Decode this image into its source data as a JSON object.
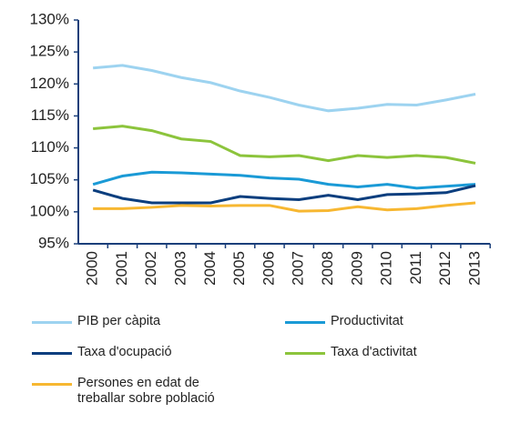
{
  "chart_data": {
    "type": "line",
    "categories": [
      "2000",
      "2001",
      "2002",
      "2003",
      "2004",
      "2005",
      "2006",
      "2007",
      "2008",
      "2009",
      "2010",
      "2011",
      "2012",
      "2013"
    ],
    "series": [
      {
        "name": "PIB per càpita",
        "color": "#9dd3f0",
        "values": [
          122.5,
          122.9,
          122.1,
          121.0,
          120.2,
          118.9,
          117.9,
          116.7,
          115.8,
          116.2,
          116.8,
          116.7,
          117.5,
          118.4
        ]
      },
      {
        "name": "Productivitat",
        "color": "#1a9ad6",
        "values": [
          104.3,
          105.6,
          106.2,
          106.1,
          105.9,
          105.7,
          105.3,
          105.1,
          104.3,
          103.9,
          104.3,
          103.7,
          104.0,
          104.3
        ]
      },
      {
        "name": "Taxa d'ocupació",
        "color": "#0b3e7e",
        "values": [
          103.4,
          102.1,
          101.4,
          101.4,
          101.4,
          102.4,
          102.1,
          101.9,
          102.6,
          101.9,
          102.7,
          102.8,
          103.0,
          104.1
        ]
      },
      {
        "name": "Taxa d'activitat",
        "color": "#8cc43c",
        "values": [
          113.0,
          113.4,
          112.7,
          111.4,
          111.0,
          108.8,
          108.6,
          108.8,
          108.0,
          108.8,
          108.5,
          108.8,
          108.5,
          107.6
        ]
      },
      {
        "name": "Persones en edat de treballar sobre població",
        "color": "#f7b731",
        "values": [
          100.5,
          100.5,
          100.7,
          101.0,
          100.9,
          101.0,
          101.0,
          100.1,
          100.2,
          100.8,
          100.3,
          100.5,
          101.0,
          101.4
        ]
      }
    ],
    "ylim": [
      95,
      130
    ],
    "yticks": [
      {
        "value": 95,
        "label": "95%"
      },
      {
        "value": 100,
        "label": "100%"
      },
      {
        "value": 105,
        "label": "105%"
      },
      {
        "value": 110,
        "label": "110%"
      },
      {
        "value": 115,
        "label": "115%"
      },
      {
        "value": 120,
        "label": "120%"
      },
      {
        "value": 125,
        "label": "125%"
      },
      {
        "value": 130,
        "label": "130%"
      }
    ],
    "grid": false
  }
}
